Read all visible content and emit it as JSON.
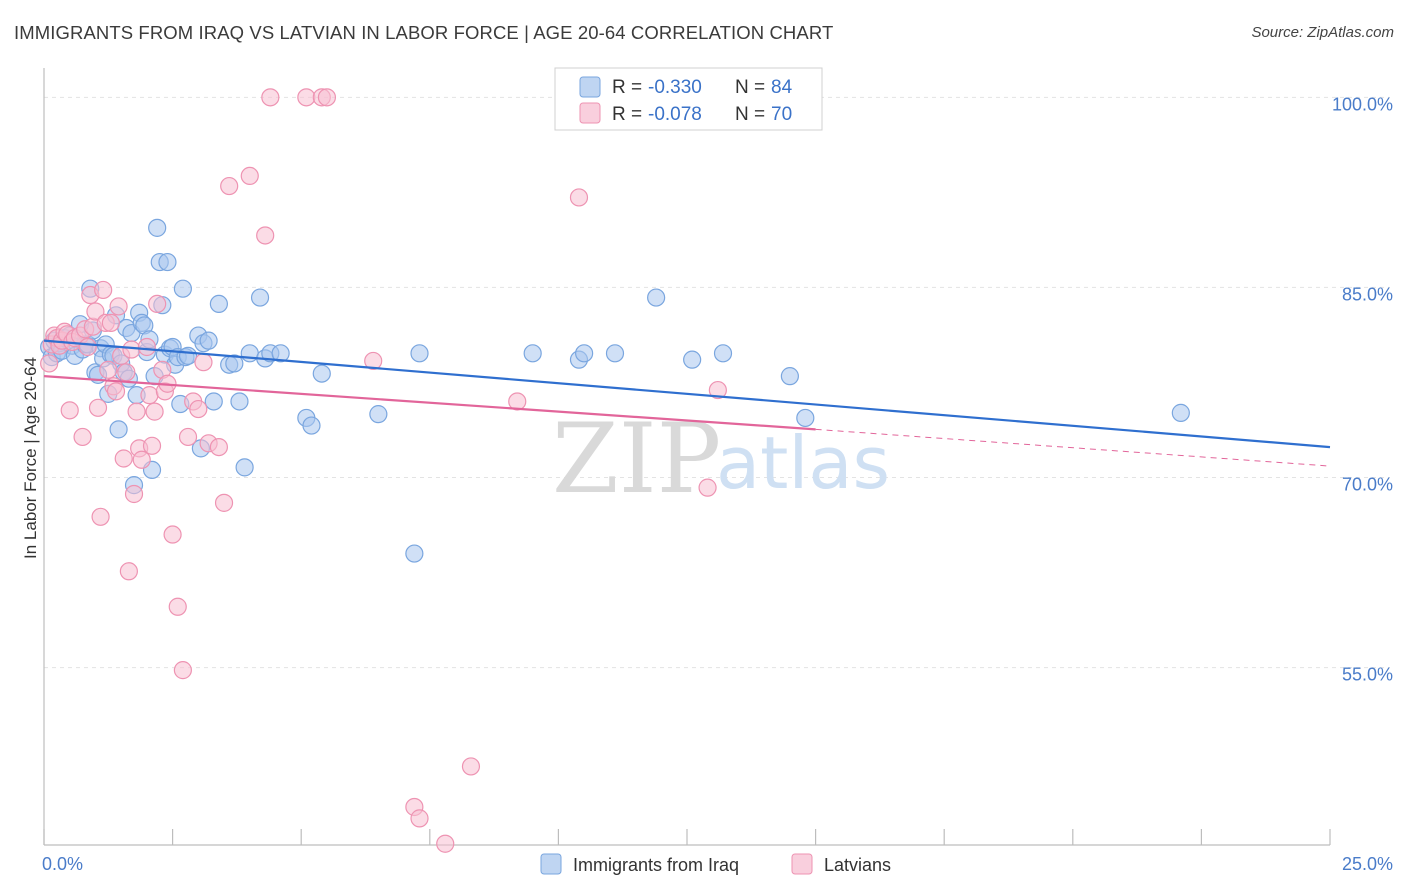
{
  "title": "IMMIGRANTS FROM IRAQ VS LATVIAN IN LABOR FORCE | AGE 20-64 CORRELATION CHART",
  "source": "Source: ZipAtlas.com",
  "watermark": {
    "part1": "ZIP",
    "part2": "atlas"
  },
  "legend_top": {
    "rows": [
      {
        "r_label": "R =",
        "r_value": "-0.330",
        "n_label": "N =",
        "n_value": "84",
        "color": "#a9c7ee",
        "stroke": "#7aa6df"
      },
      {
        "r_label": "R =",
        "r_value": "-0.078",
        "n_label": "N =",
        "n_value": "70",
        "color": "#f7bfd1",
        "stroke": "#ee93b2"
      }
    ]
  },
  "legend_bottom": [
    {
      "label": "Immigrants from Iraq",
      "color": "#a9c7ee",
      "stroke": "#7aa6df"
    },
    {
      "label": "Latvians",
      "color": "#f7bfd1",
      "stroke": "#ee93b2"
    }
  ],
  "chart_data": {
    "type": "scatter",
    "title": "IMMIGRANTS FROM IRAQ VS LATVIAN IN LABOR FORCE | AGE 20-64 CORRELATION CHART",
    "xlabel": "",
    "ylabel": "In Labor Force | Age 20-64",
    "xlim": [
      0,
      25
    ],
    "ylim": [
      41,
      102
    ],
    "x_tick_labels": [
      "0.0%",
      "25.0%"
    ],
    "y_ticks": [
      55,
      70,
      85,
      100
    ],
    "y_tick_labels": [
      "55.0%",
      "70.0%",
      "85.0%",
      "100.0%"
    ],
    "grid": true,
    "series": [
      {
        "name": "Immigrants from Iraq",
        "color": "#a9c7ee",
        "stroke": "#7aa6df",
        "line_color": "#2f6fcf",
        "trend": {
          "x": [
            0,
            25
          ],
          "y": [
            80.8,
            72.4
          ],
          "dashed_from": null
        },
        "x": [
          0.1,
          0.15,
          0.2,
          0.25,
          0.3,
          0.35,
          0.4,
          0.5,
          0.55,
          0.6,
          0.7,
          0.75,
          0.8,
          0.85,
          0.9,
          0.95,
          1.0,
          1.05,
          1.1,
          1.15,
          1.2,
          1.25,
          1.3,
          1.35,
          1.4,
          1.45,
          1.5,
          1.55,
          1.6,
          1.65,
          1.7,
          1.75,
          1.8,
          1.85,
          1.9,
          1.95,
          2.0,
          2.05,
          2.1,
          2.15,
          2.2,
          2.25,
          2.3,
          2.35,
          2.4,
          2.45,
          2.5,
          2.55,
          2.6,
          2.65,
          2.7,
          2.75,
          2.8,
          3.0,
          3.05,
          3.1,
          3.2,
          3.3,
          3.4,
          3.6,
          3.7,
          3.8,
          3.9,
          4.0,
          4.2,
          4.3,
          4.4,
          4.6,
          5.1,
          5.2,
          5.4,
          6.5,
          7.2,
          7.3,
          9.5,
          10.4,
          10.5,
          11.1,
          11.9,
          12.6,
          13.2,
          14.5,
          14.8,
          22.1
        ],
        "y": [
          80.3,
          79.5,
          80.8,
          79.8,
          80.6,
          80.0,
          81.0,
          81.2,
          80.4,
          79.6,
          82.1,
          80.1,
          80.5,
          80.5,
          84.9,
          81.6,
          78.3,
          78.1,
          80.2,
          79.4,
          80.5,
          76.6,
          79.7,
          79.6,
          82.8,
          73.8,
          79.0,
          78.3,
          81.8,
          77.8,
          81.4,
          69.4,
          76.5,
          83.0,
          82.2,
          82.0,
          79.9,
          80.9,
          70.6,
          78.0,
          89.7,
          87.0,
          83.6,
          79.7,
          87.0,
          80.2,
          80.3,
          78.9,
          79.5,
          75.8,
          84.9,
          79.5,
          79.6,
          81.2,
          72.3,
          80.6,
          80.8,
          76.0,
          83.7,
          78.9,
          79.0,
          76.0,
          70.8,
          79.8,
          84.2,
          79.4,
          79.8,
          79.8,
          74.7,
          74.1,
          78.2,
          75.0,
          64.0,
          79.8,
          79.8,
          79.3,
          79.8,
          79.8,
          84.2,
          79.3,
          79.8,
          78.0,
          74.7,
          75.1
        ]
      },
      {
        "name": "Latvians",
        "color": "#f7bfd1",
        "stroke": "#ee93b2",
        "line_color": "#e2659a",
        "trend": {
          "x": [
            0,
            15,
            25
          ],
          "y": [
            78.0,
            73.8,
            70.9
          ],
          "dashed_from": 15
        },
        "x": [
          0.1,
          0.15,
          0.2,
          0.25,
          0.3,
          0.35,
          0.4,
          0.45,
          0.5,
          0.55,
          0.6,
          0.7,
          0.75,
          0.8,
          0.85,
          0.9,
          0.95,
          1.0,
          1.05,
          1.1,
          1.15,
          1.2,
          1.25,
          1.3,
          1.35,
          1.4,
          1.45,
          1.5,
          1.55,
          1.6,
          1.65,
          1.7,
          1.75,
          1.8,
          1.85,
          1.9,
          2.0,
          2.05,
          2.1,
          2.15,
          2.2,
          2.3,
          2.35,
          2.4,
          2.5,
          2.6,
          2.7,
          2.8,
          2.9,
          3.0,
          3.1,
          3.2,
          3.4,
          3.5,
          3.6,
          4.0,
          4.3,
          4.4,
          5.1,
          5.4,
          5.5,
          6.4,
          7.2,
          7.3,
          7.8,
          8.3,
          9.2,
          10.4,
          12.9,
          13.1
        ],
        "y": [
          79.0,
          80.5,
          81.2,
          81.0,
          80.4,
          80.8,
          81.5,
          81.3,
          75.3,
          80.7,
          81.0,
          81.2,
          73.2,
          81.7,
          80.3,
          84.4,
          81.9,
          83.1,
          75.5,
          66.9,
          84.8,
          82.2,
          78.5,
          82.2,
          77.2,
          76.8,
          83.5,
          79.6,
          71.5,
          78.3,
          62.6,
          80.1,
          68.7,
          75.2,
          72.3,
          71.4,
          80.3,
          76.5,
          72.5,
          75.2,
          83.7,
          78.5,
          76.8,
          77.4,
          65.5,
          59.8,
          54.8,
          73.2,
          76.0,
          75.4,
          79.1,
          72.7,
          72.4,
          68.0,
          93.0,
          93.8,
          89.1,
          100.0,
          100.0,
          100.0,
          100.0,
          79.2,
          44.0,
          43.1,
          41.1,
          47.2,
          76.0,
          92.1,
          69.2,
          76.9
        ]
      }
    ]
  }
}
